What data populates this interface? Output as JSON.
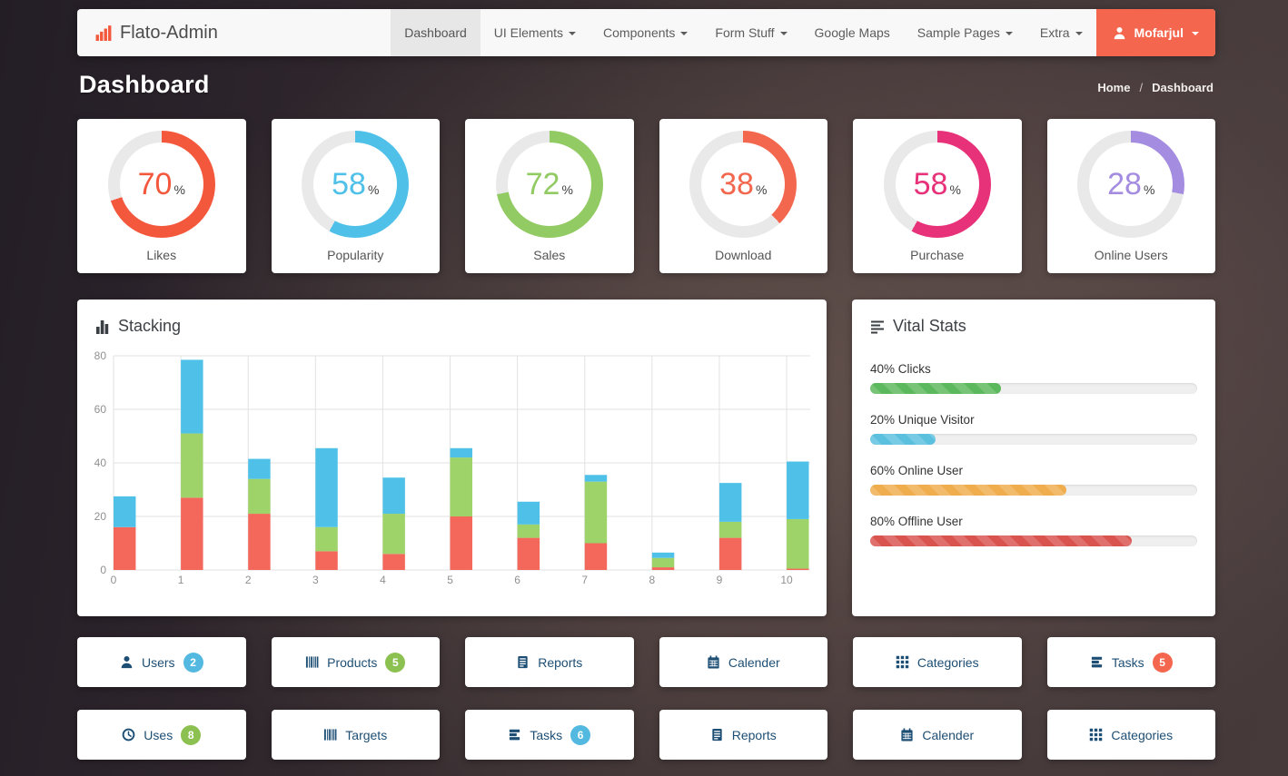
{
  "navbar": {
    "brand": "Flato-Admin",
    "items": [
      {
        "label": "Dashboard",
        "active": true,
        "caret": false
      },
      {
        "label": "UI Elements",
        "active": false,
        "caret": true
      },
      {
        "label": "Components",
        "active": false,
        "caret": true
      },
      {
        "label": "Form Stuff",
        "active": false,
        "caret": true
      },
      {
        "label": "Google Maps",
        "active": false,
        "caret": false
      },
      {
        "label": "Sample Pages",
        "active": false,
        "caret": true
      },
      {
        "label": "Extra",
        "active": false,
        "caret": true
      }
    ],
    "user": {
      "label": "Mofarjul",
      "color": "#f4664d"
    }
  },
  "page": {
    "title": "Dashboard",
    "breadcrumb": [
      "Home",
      "Dashboard"
    ],
    "separator": "/"
  },
  "stat_cards": [
    {
      "percent": 70,
      "unit": "%",
      "label": "Likes",
      "color": "#f4583c"
    },
    {
      "percent": 58,
      "unit": "%",
      "label": "Popularity",
      "color": "#4fc1e9"
    },
    {
      "percent": 72,
      "unit": "%",
      "label": "Sales",
      "color": "#92ca63"
    },
    {
      "percent": 38,
      "unit": "%",
      "label": "Download",
      "color": "#f2674e"
    },
    {
      "percent": 58,
      "unit": "%",
      "label": "Purchase",
      "color": "#e73179"
    },
    {
      "percent": 28,
      "unit": "%",
      "label": "Online Users",
      "color": "#a48ce0"
    }
  ],
  "chart_data": {
    "type": "bar",
    "stacked": true,
    "title": "Stacking",
    "grid": true,
    "x": [
      0,
      1,
      2,
      3,
      4,
      5,
      6,
      7,
      8,
      9,
      10
    ],
    "xticks": [
      0,
      1,
      2,
      3,
      4,
      5,
      6,
      7,
      8,
      9,
      10
    ],
    "yticks": [
      0,
      20,
      40,
      60,
      80
    ],
    "ylim": [
      0,
      80
    ],
    "xlabel": "",
    "ylabel": "",
    "bar_width": 0.33,
    "series": [
      {
        "name": "series-red",
        "color": "#f4685c",
        "values": [
          16,
          27,
          21,
          7,
          6,
          20,
          12,
          10,
          1,
          12,
          0.5
        ]
      },
      {
        "name": "series-green",
        "color": "#9ed36a",
        "values": [
          0,
          24,
          13,
          9,
          15,
          22,
          5,
          23,
          3.5,
          6,
          18.5
        ]
      },
      {
        "name": "series-blue",
        "color": "#4fc1e9",
        "values": [
          11.5,
          27.5,
          7.5,
          29.5,
          13.5,
          3.5,
          8.5,
          2.5,
          2,
          14.5,
          21.5
        ]
      }
    ]
  },
  "vital_stats": {
    "title": "Vital Stats",
    "items": [
      {
        "label": "40% Clicks",
        "percent": 40,
        "color": "#5cb85c"
      },
      {
        "label": "20% Unique Visitor",
        "percent": 20,
        "color": "#5bc0de"
      },
      {
        "label": "60% Online User",
        "percent": 60,
        "color": "#f0ad4e"
      },
      {
        "label": "80% Offline User",
        "percent": 80,
        "color": "#d9534f"
      }
    ]
  },
  "shortcuts": [
    {
      "label": "Users",
      "icon": "user-icon",
      "badge": "2",
      "badge_color": "#54b9e0"
    },
    {
      "label": "Products",
      "icon": "barcode-icon",
      "badge": "5",
      "badge_color": "#8cc152"
    },
    {
      "label": "Reports",
      "icon": "report-icon",
      "badge": null,
      "badge_color": null
    },
    {
      "label": "Calender",
      "icon": "calendar-icon",
      "badge": null,
      "badge_color": null
    },
    {
      "label": "Categories",
      "icon": "grid-icon",
      "badge": null,
      "badge_color": null
    },
    {
      "label": "Tasks",
      "icon": "tasks-icon",
      "badge": "5",
      "badge_color": "#f4664d"
    },
    {
      "label": "Uses",
      "icon": "clock-icon",
      "badge": "8",
      "badge_color": "#8cc152"
    },
    {
      "label": "Targets",
      "icon": "barcode-icon",
      "badge": null,
      "badge_color": null
    },
    {
      "label": "Tasks",
      "icon": "tasks-icon",
      "badge": "6",
      "badge_color": "#54b9e0"
    },
    {
      "label": "Reports",
      "icon": "report-icon",
      "badge": null,
      "badge_color": null
    },
    {
      "label": "Calender",
      "icon": "calendar-icon",
      "badge": null,
      "badge_color": null
    },
    {
      "label": "Categories",
      "icon": "grid-icon",
      "badge": null,
      "badge_color": null
    }
  ],
  "colors": {
    "accent": "#f4664d",
    "navbar_bg": "#f8f8f8",
    "navbar_active_bg": "#e7e7e7",
    "donut_track": "#e9e9e9",
    "progress_track": "#efefef"
  }
}
